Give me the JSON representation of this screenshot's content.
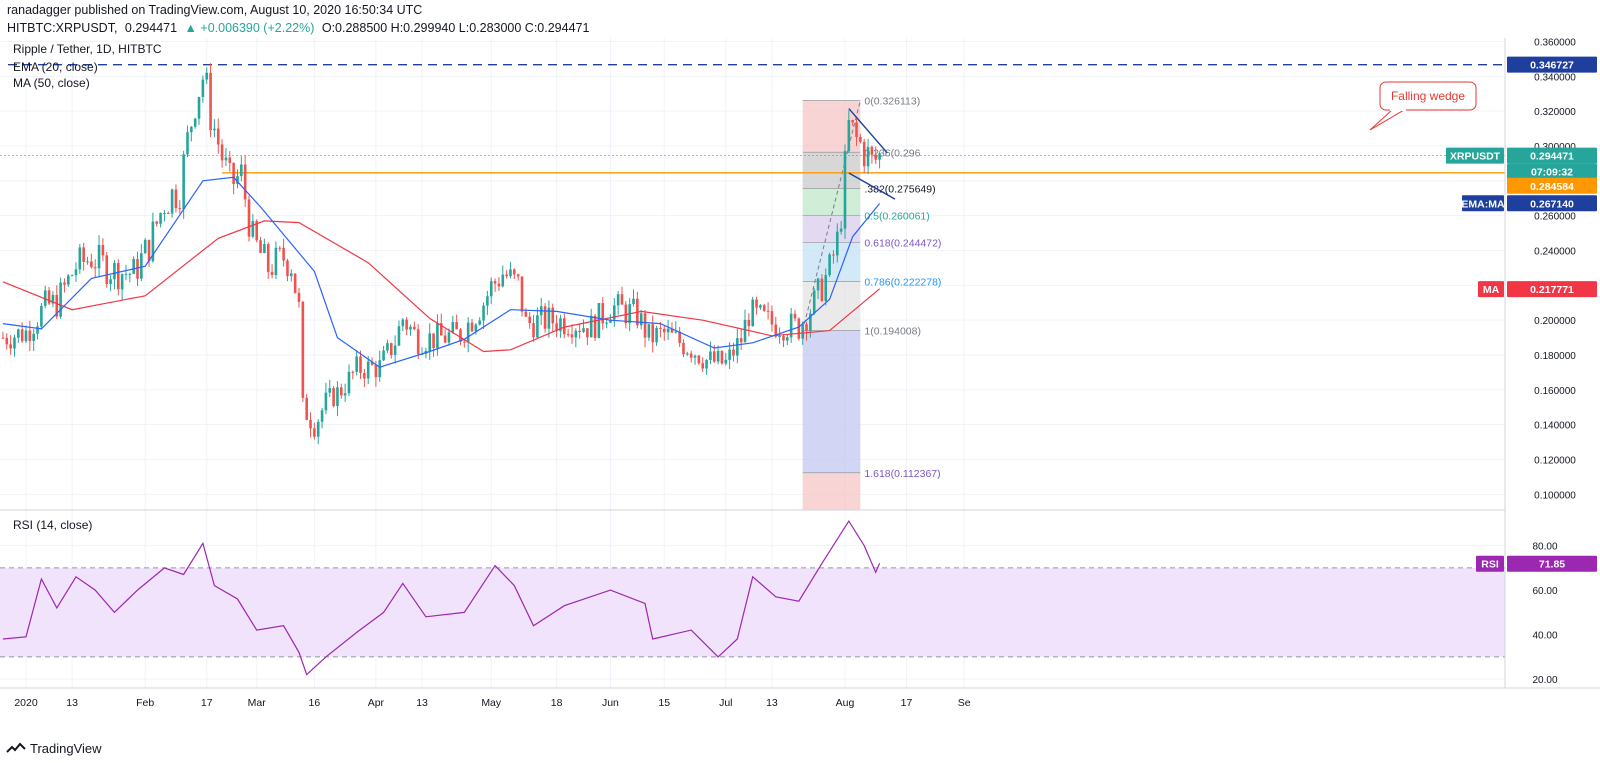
{
  "header": {
    "publisher_line": "ranadagger published on TradingView.com, August 10, 2020 16:50:34 UTC",
    "symbol": "HITBTC:XRPUSDT,",
    "last": "0.294471",
    "change": "▲ +0.006390 (+2.22%)",
    "ohlc": "O:0.288500 H:0.299940 L:0.283000 C:0.294471"
  },
  "legend": {
    "title": "Ripple / Tether, 1D, HITBTC",
    "ema": "EMA (20, close)",
    "ma": "MA (50, close)",
    "rsi": "RSI (14, close)"
  },
  "annotation": {
    "wedge_label": "Falling wedge"
  },
  "price_labels": {
    "resistance": "0.346727",
    "xrpusdt_name": "XRPUSDT",
    "xrpusdt_value": "0.294471",
    "countdown": "07:09:32",
    "support": "0.284584",
    "ema_name": "EMA:MA",
    "ema_value": "0.267140",
    "ma_name": "MA",
    "ma_value": "0.217771",
    "rsi_name": "RSI",
    "rsi_value": "71.85"
  },
  "colors": {
    "up": "#26a69a",
    "down": "#ef5350",
    "ema": "#2962ff",
    "ma": "#f23645",
    "resistance": "#1e3f9e",
    "support": "#ff9800",
    "rsi_line": "#9c27b0",
    "rsi_band": "#f1e3fb"
  },
  "footer": {
    "brand": "TradingView"
  },
  "chart_data": {
    "type": "candlestick",
    "price_axis": {
      "ylim": [
        0.091,
        0.362
      ],
      "ticks": [
        "0.100000",
        "0.120000",
        "0.140000",
        "0.160000",
        "0.180000",
        "0.200000",
        "0.220000",
        "0.240000",
        "0.260000",
        "0.280000",
        "0.300000",
        "0.320000",
        "0.340000",
        "0.360000"
      ]
    },
    "x_axis": {
      "ticks": [
        {
          "label": "2020",
          "x": "2020-01-01"
        },
        {
          "label": "13",
          "x": "2020-01-13"
        },
        {
          "label": "Feb",
          "x": "2020-02-01"
        },
        {
          "label": "17",
          "x": "2020-02-17"
        },
        {
          "label": "Mar",
          "x": "2020-03-01"
        },
        {
          "label": "16",
          "x": "2020-03-16"
        },
        {
          "label": "Apr",
          "x": "2020-04-01"
        },
        {
          "label": "13",
          "x": "2020-04-13"
        },
        {
          "label": "May",
          "x": "2020-05-01"
        },
        {
          "label": "18",
          "x": "2020-05-18"
        },
        {
          "label": "Jun",
          "x": "2020-06-01"
        },
        {
          "label": "15",
          "x": "2020-06-15"
        },
        {
          "label": "Jul",
          "x": "2020-07-01"
        },
        {
          "label": "13",
          "x": "2020-07-13"
        },
        {
          "label": "Aug",
          "x": "2020-08-01"
        },
        {
          "label": "17",
          "x": "2020-08-17"
        },
        {
          "label": "Se",
          "x": "2020-09-01"
        }
      ]
    },
    "close_series": [
      {
        "date": "2019-12-26",
        "close": 0.19
      },
      {
        "date": "2020-01-01",
        "close": 0.193
      },
      {
        "date": "2020-01-06",
        "close": 0.208
      },
      {
        "date": "2020-01-09",
        "close": 0.21
      },
      {
        "date": "2020-01-14",
        "close": 0.231
      },
      {
        "date": "2020-01-18",
        "close": 0.236
      },
      {
        "date": "2020-01-24",
        "close": 0.228
      },
      {
        "date": "2020-01-29",
        "close": 0.227
      },
      {
        "date": "2020-02-02",
        "close": 0.243
      },
      {
        "date": "2020-02-06",
        "close": 0.268
      },
      {
        "date": "2020-02-10",
        "close": 0.276
      },
      {
        "date": "2020-02-14",
        "close": 0.328
      },
      {
        "date": "2020-02-16",
        "close": 0.34
      },
      {
        "date": "2020-02-19",
        "close": 0.31
      },
      {
        "date": "2020-02-23",
        "close": 0.278
      },
      {
        "date": "2020-02-26",
        "close": 0.283
      },
      {
        "date": "2020-02-29",
        "close": 0.246
      },
      {
        "date": "2020-03-04",
        "close": 0.23
      },
      {
        "date": "2020-03-08",
        "close": 0.236
      },
      {
        "date": "2020-03-10",
        "close": 0.232
      },
      {
        "date": "2020-03-12",
        "close": 0.206
      },
      {
        "date": "2020-03-13",
        "close": 0.15
      },
      {
        "date": "2020-03-16",
        "close": 0.139
      },
      {
        "date": "2020-03-19",
        "close": 0.153
      },
      {
        "date": "2020-03-23",
        "close": 0.16
      },
      {
        "date": "2020-03-27",
        "close": 0.172
      },
      {
        "date": "2020-04-02",
        "close": 0.173
      },
      {
        "date": "2020-04-06",
        "close": 0.188
      },
      {
        "date": "2020-04-08",
        "close": 0.201
      },
      {
        "date": "2020-04-12",
        "close": 0.189
      },
      {
        "date": "2020-04-18",
        "close": 0.19
      },
      {
        "date": "2020-04-23",
        "close": 0.192
      },
      {
        "date": "2020-04-29",
        "close": 0.21
      },
      {
        "date": "2020-05-01",
        "close": 0.219
      },
      {
        "date": "2020-05-04",
        "close": 0.227
      },
      {
        "date": "2020-05-08",
        "close": 0.22
      },
      {
        "date": "2020-05-10",
        "close": 0.198
      },
      {
        "date": "2020-05-15",
        "close": 0.2
      },
      {
        "date": "2020-05-22",
        "close": 0.199
      },
      {
        "date": "2020-05-27",
        "close": 0.196
      },
      {
        "date": "2020-06-01",
        "close": 0.208
      },
      {
        "date": "2020-06-08",
        "close": 0.203
      },
      {
        "date": "2020-06-11",
        "close": 0.19
      },
      {
        "date": "2020-06-15",
        "close": 0.192
      },
      {
        "date": "2020-06-22",
        "close": 0.184
      },
      {
        "date": "2020-06-26",
        "close": 0.177
      },
      {
        "date": "2020-07-01",
        "close": 0.175
      },
      {
        "date": "2020-07-05",
        "close": 0.189
      },
      {
        "date": "2020-07-07",
        "close": 0.204
      },
      {
        "date": "2020-07-13",
        "close": 0.198
      },
      {
        "date": "2020-07-20",
        "close": 0.196
      },
      {
        "date": "2020-07-24",
        "close": 0.21
      },
      {
        "date": "2020-07-28",
        "close": 0.229
      },
      {
        "date": "2020-07-30",
        "close": 0.245
      },
      {
        "date": "2020-07-31",
        "close": 0.262
      },
      {
        "date": "2020-08-02",
        "close": 0.31
      },
      {
        "date": "2020-08-04",
        "close": 0.303
      },
      {
        "date": "2020-08-06",
        "close": 0.298
      },
      {
        "date": "2020-08-08",
        "close": 0.29
      },
      {
        "date": "2020-08-10",
        "close": 0.294
      }
    ],
    "ema_20": [
      {
        "date": "2019-12-26",
        "v": 0.198
      },
      {
        "date": "2020-01-05",
        "v": 0.195
      },
      {
        "date": "2020-01-18",
        "v": 0.224
      },
      {
        "date": "2020-02-01",
        "v": 0.231
      },
      {
        "date": "2020-02-16",
        "v": 0.28
      },
      {
        "date": "2020-02-24",
        "v": 0.282
      },
      {
        "date": "2020-03-02",
        "v": 0.265
      },
      {
        "date": "2020-03-16",
        "v": 0.228
      },
      {
        "date": "2020-03-22",
        "v": 0.19
      },
      {
        "date": "2020-04-02",
        "v": 0.173
      },
      {
        "date": "2020-04-15",
        "v": 0.182
      },
      {
        "date": "2020-04-24",
        "v": 0.189
      },
      {
        "date": "2020-05-06",
        "v": 0.206
      },
      {
        "date": "2020-05-18",
        "v": 0.205
      },
      {
        "date": "2020-06-01",
        "v": 0.2
      },
      {
        "date": "2020-06-14",
        "v": 0.198
      },
      {
        "date": "2020-06-28",
        "v": 0.184
      },
      {
        "date": "2020-07-08",
        "v": 0.187
      },
      {
        "date": "2020-07-20",
        "v": 0.196
      },
      {
        "date": "2020-07-28",
        "v": 0.212
      },
      {
        "date": "2020-08-03",
        "v": 0.248
      },
      {
        "date": "2020-08-10",
        "v": 0.267
      }
    ],
    "ma_50": [
      {
        "date": "2019-12-26",
        "v": 0.222
      },
      {
        "date": "2020-01-13",
        "v": 0.206
      },
      {
        "date": "2020-02-01",
        "v": 0.214
      },
      {
        "date": "2020-02-20",
        "v": 0.247
      },
      {
        "date": "2020-03-03",
        "v": 0.257
      },
      {
        "date": "2020-03-12",
        "v": 0.256
      },
      {
        "date": "2020-03-30",
        "v": 0.233
      },
      {
        "date": "2020-04-15",
        "v": 0.201
      },
      {
        "date": "2020-04-29",
        "v": 0.182
      },
      {
        "date": "2020-05-06",
        "v": 0.183
      },
      {
        "date": "2020-05-20",
        "v": 0.196
      },
      {
        "date": "2020-06-09",
        "v": 0.205
      },
      {
        "date": "2020-06-25",
        "v": 0.2
      },
      {
        "date": "2020-07-13",
        "v": 0.191
      },
      {
        "date": "2020-07-28",
        "v": 0.194
      },
      {
        "date": "2020-08-10",
        "v": 0.218
      }
    ],
    "horizontal_levels": [
      {
        "name": "resistance",
        "value": 0.3467
      },
      {
        "name": "support",
        "value": 0.2846
      }
    ],
    "fibonacci": [
      {
        "label": "0(0.326113)",
        "value": 0.326113
      },
      {
        "label": "0.236(0.296",
        "value": 0.2964
      },
      {
        "label": ".382(0.275649)",
        "value": 0.275649
      },
      {
        "label": "0.5(0.260061)",
        "value": 0.260061
      },
      {
        "label": "0.618(0.244472)",
        "value": 0.244472
      },
      {
        "label": "0.786(0.222278)",
        "value": 0.222278
      },
      {
        "label": "1(0.194008)",
        "value": 0.194008
      },
      {
        "label": "1.618(0.112367)",
        "value": 0.112367
      }
    ],
    "rsi": {
      "ylim": [
        16,
        96
      ],
      "ticks": [
        "20.00",
        "40.00",
        "60.00",
        "80.00"
      ],
      "band": [
        30,
        70
      ],
      "points": [
        {
          "date": "2019-12-26",
          "v": 38
        },
        {
          "date": "2020-01-01",
          "v": 39
        },
        {
          "date": "2020-01-05",
          "v": 65
        },
        {
          "date": "2020-01-09",
          "v": 52
        },
        {
          "date": "2020-01-14",
          "v": 66
        },
        {
          "date": "2020-01-19",
          "v": 60
        },
        {
          "date": "2020-01-24",
          "v": 50
        },
        {
          "date": "2020-01-30",
          "v": 60
        },
        {
          "date": "2020-02-06",
          "v": 70
        },
        {
          "date": "2020-02-11",
          "v": 67
        },
        {
          "date": "2020-02-16",
          "v": 81
        },
        {
          "date": "2020-02-19",
          "v": 62
        },
        {
          "date": "2020-02-25",
          "v": 56
        },
        {
          "date": "2020-03-01",
          "v": 42
        },
        {
          "date": "2020-03-08",
          "v": 44
        },
        {
          "date": "2020-03-12",
          "v": 32
        },
        {
          "date": "2020-03-14",
          "v": 22
        },
        {
          "date": "2020-03-19",
          "v": 30
        },
        {
          "date": "2020-03-27",
          "v": 41
        },
        {
          "date": "2020-04-03",
          "v": 50
        },
        {
          "date": "2020-04-08",
          "v": 63
        },
        {
          "date": "2020-04-14",
          "v": 48
        },
        {
          "date": "2020-04-24",
          "v": 50
        },
        {
          "date": "2020-05-02",
          "v": 71
        },
        {
          "date": "2020-05-07",
          "v": 62
        },
        {
          "date": "2020-05-12",
          "v": 44
        },
        {
          "date": "2020-05-20",
          "v": 53
        },
        {
          "date": "2020-06-01",
          "v": 60
        },
        {
          "date": "2020-06-10",
          "v": 54
        },
        {
          "date": "2020-06-12",
          "v": 38
        },
        {
          "date": "2020-06-22",
          "v": 42
        },
        {
          "date": "2020-06-29",
          "v": 30
        },
        {
          "date": "2020-07-04",
          "v": 38
        },
        {
          "date": "2020-07-08",
          "v": 66
        },
        {
          "date": "2020-07-14",
          "v": 57
        },
        {
          "date": "2020-07-20",
          "v": 55
        },
        {
          "date": "2020-07-26",
          "v": 72
        },
        {
          "date": "2020-08-02",
          "v": 91
        },
        {
          "date": "2020-08-06",
          "v": 80
        },
        {
          "date": "2020-08-09",
          "v": 68
        },
        {
          "date": "2020-08-10",
          "v": 72
        }
      ]
    }
  }
}
